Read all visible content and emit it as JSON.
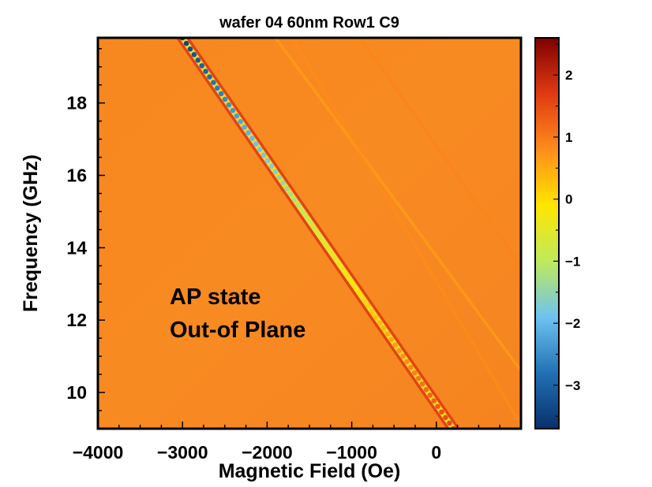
{
  "chart_data": {
    "type": "heatmap",
    "title": "wafer 04 60nm Row1 C9",
    "xlabel": "Magnetic Field (Oe)",
    "ylabel": "Frequency (GHz)",
    "xlim": [
      -4000,
      1000
    ],
    "ylim": [
      9,
      19.8
    ],
    "x_ticks": [
      -4000,
      -3000,
      -2000,
      -1000,
      0
    ],
    "x_tick_labels": [
      "−4000",
      "−3000",
      "−2000",
      "−1000",
      "0"
    ],
    "y_ticks": [
      10,
      12,
      14,
      16,
      18
    ],
    "y_tick_labels": [
      "10",
      "12",
      "14",
      "16",
      "18"
    ],
    "colorbar": {
      "range": [
        -3.7,
        2.6
      ],
      "ticks": [
        2,
        1,
        0,
        -1,
        -2,
        -3
      ],
      "tick_labels": [
        "2",
        "1",
        "0",
        "−1",
        "−2",
        "−3"
      ],
      "colors": [
        "#08306b",
        "#2171b5",
        "#6ec3f0",
        "#bfea5a",
        "#ffe600",
        "#ff8c1a",
        "#e03a12",
        "#7f0000"
      ]
    },
    "background_value": 1.1,
    "modes": [
      {
        "name": "main",
        "x_start": -3000,
        "y_start": 19.8,
        "x_end": 200,
        "y_end": 9,
        "min_value": -3.5,
        "edge_value": 1.6
      },
      {
        "name": "secondary-1",
        "x_start": -1900,
        "y_start": 19.8,
        "x_end": 1000,
        "y_end": 10.6,
        "min_value": 0.6
      },
      {
        "name": "secondary-2",
        "x_start": -1700,
        "y_start": 19.8,
        "x_end": 1000,
        "y_end": 9.1,
        "min_value": 0.8
      },
      {
        "name": "secondary-3",
        "x_start": -900,
        "y_start": 19.8,
        "x_end": 1000,
        "y_end": 13.5,
        "min_value": 0.9
      }
    ],
    "annotations": [
      "AP state",
      "Out-of Plane"
    ],
    "grid": false
  }
}
